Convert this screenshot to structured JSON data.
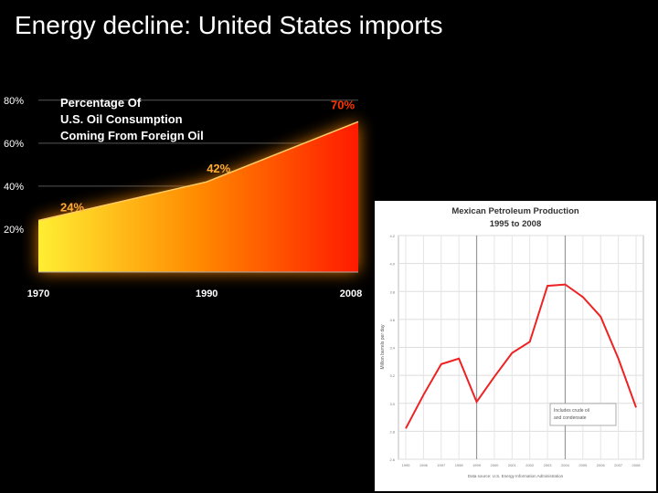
{
  "slide": {
    "title": "Energy decline: United States imports"
  },
  "colors": {
    "background": "#000000",
    "area_low": "#ffee33",
    "area_mid": "#ff8a00",
    "area_high": "#ff1a00",
    "label_highlight": "#ffaa33",
    "label_end": "#ff3300",
    "mex_line": "#ee2222",
    "mex_panel": "#ffffff"
  },
  "chart_data": [
    {
      "type": "area",
      "title": "Percentage Of U.S. Oil Consumption Coming From Foreign Oil",
      "title_lines": [
        "Percentage Of",
        "U.S. Oil Consumption",
        "Coming From Foreign Oil"
      ],
      "x": [
        1970,
        1990,
        2008
      ],
      "x_tick_labels": [
        "1970",
        "1990",
        "2008"
      ],
      "values": [
        24,
        42,
        70
      ],
      "point_labels": [
        "24%",
        "42%",
        "70%"
      ],
      "y_tick_values": [
        20,
        40,
        60,
        80
      ],
      "y_tick_labels": [
        "20%",
        "40%",
        "60%",
        "80%"
      ],
      "ylim": [
        0,
        85
      ],
      "xlabel": "",
      "ylabel": "",
      "grid": true
    },
    {
      "type": "line",
      "title": "Mexican Petroleum Production",
      "subtitle": "1995 to 2008",
      "ylabel": "Million barrels per day",
      "x": [
        1995,
        1996,
        1997,
        1998,
        1999,
        2000,
        2001,
        2002,
        2003,
        2004,
        2005,
        2006,
        2007,
        2008
      ],
      "x_tick_labels": [
        "1995",
        "1996",
        "1997",
        "1998",
        "1999",
        "2000",
        "2001",
        "2002",
        "2003",
        "2004",
        "2005",
        "2006",
        "2007",
        "2008"
      ],
      "values": [
        2.82,
        3.06,
        3.28,
        3.32,
        3.01,
        3.19,
        3.36,
        3.44,
        3.84,
        3.85,
        3.76,
        3.62,
        3.32,
        2.97
      ],
      "y_tick_values": [
        2.6,
        2.8,
        3.0,
        3.2,
        3.4,
        3.6,
        3.8,
        4.0,
        4.2
      ],
      "y_tick_labels": [
        "2.6",
        "2.8",
        "3.0",
        "3.2",
        "3.4",
        "3.6",
        "3.8",
        "4.0",
        "4.2"
      ],
      "ylim": [
        2.6,
        4.2
      ],
      "annotation_lines": [
        "Includes crude oil",
        "and condensate"
      ],
      "source": "Data source: U.S. Energy Information Administration",
      "grid": true
    }
  ]
}
